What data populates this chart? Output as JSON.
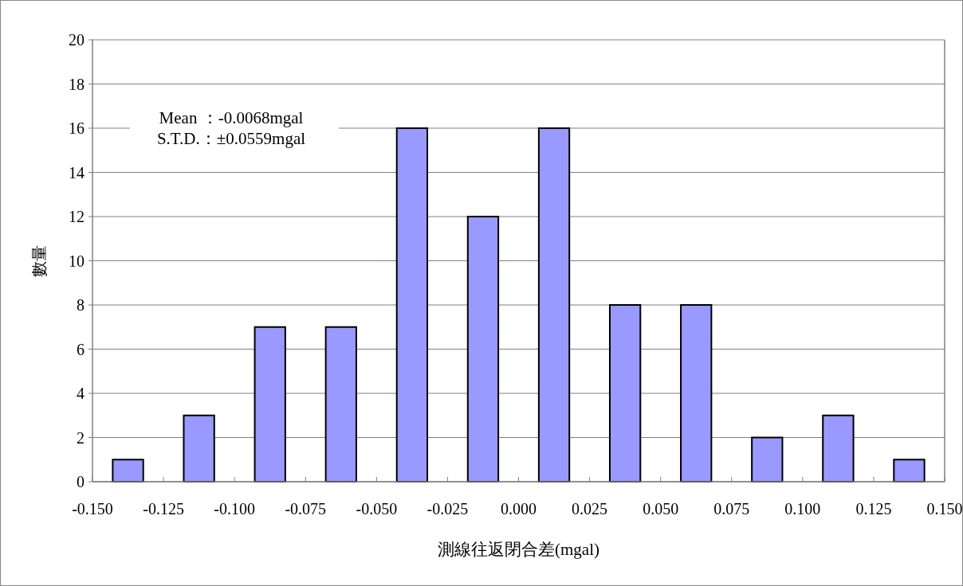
{
  "chart_data": {
    "type": "histogram",
    "xlabel": "測線往返閉合差(mgal)",
    "ylabel": "數量",
    "bins": [
      -0.15,
      -0.125,
      -0.1,
      -0.075,
      -0.05,
      -0.025,
      0,
      0.025,
      0.05,
      0.075,
      0.1,
      0.125,
      0.15
    ],
    "values": [
      1,
      3,
      7,
      7,
      16,
      12,
      16,
      8,
      8,
      2,
      3,
      1
    ],
    "color": "#9999ff",
    "xlim": [
      -0.15,
      0.15
    ],
    "xticks": [
      {
        "value": -0.15,
        "label": "-0.150"
      },
      {
        "value": -0.125,
        "label": "-0.125"
      },
      {
        "value": -0.1,
        "label": "-0.100"
      },
      {
        "value": -0.075,
        "label": "-0.075"
      },
      {
        "value": -0.05,
        "label": "-0.050"
      },
      {
        "value": -0.025,
        "label": "-0.025"
      },
      {
        "value": 0,
        "label": "0.000"
      },
      {
        "value": 0.025,
        "label": "0.025"
      },
      {
        "value": 0.05,
        "label": "0.050"
      },
      {
        "value": 0.075,
        "label": "0.075"
      },
      {
        "value": 0.1,
        "label": "0.100"
      },
      {
        "value": 0.125,
        "label": "0.125"
      },
      {
        "value": 0.15,
        "label": "0.150"
      }
    ],
    "ylim": [
      0,
      20
    ],
    "yticks": [
      0,
      2,
      4,
      6,
      8,
      10,
      12,
      14,
      16,
      18,
      20
    ],
    "grid": "y",
    "annotations": [
      "Mean ：-0.0068mgal",
      "S.T.D.：±0.0559mgal"
    ]
  }
}
